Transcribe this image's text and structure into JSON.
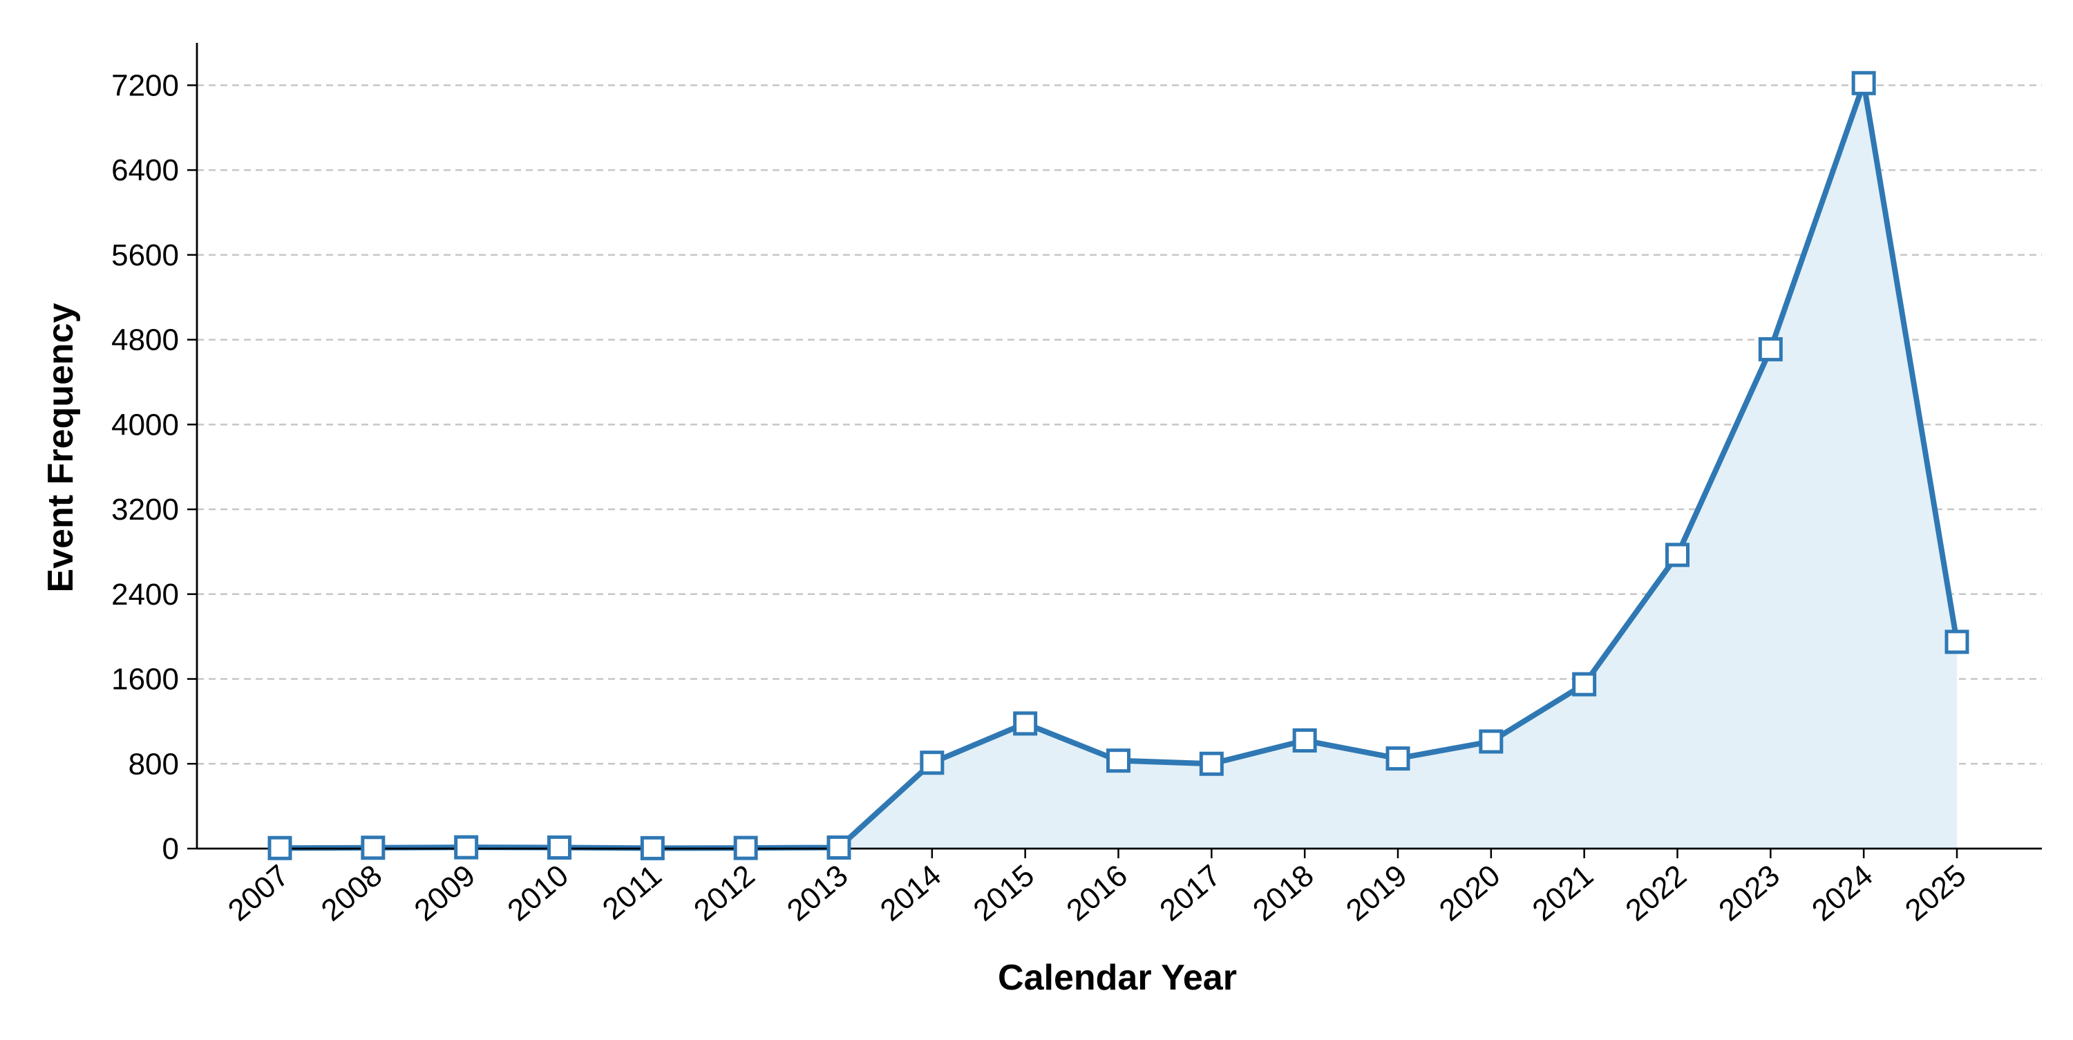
{
  "chart_data": {
    "type": "line",
    "xlabel": "Calendar Year",
    "ylabel": "Event Frequency",
    "x": [
      "2007",
      "2008",
      "2009",
      "2010",
      "2011",
      "2012",
      "2013",
      "2014",
      "2015",
      "2016",
      "2017",
      "2018",
      "2019",
      "2020",
      "2021",
      "2022",
      "2023",
      "2024",
      "2025"
    ],
    "series": [
      {
        "values": [
          5,
          8,
          12,
          10,
          4,
          6,
          10,
          810,
          1180,
          830,
          800,
          1020,
          850,
          1010,
          1550,
          2770,
          4710,
          7220,
          1950
        ],
        "color": "#2f78b4",
        "fill_color": "#e3f0f7"
      }
    ],
    "ylim": [
      0,
      7600
    ],
    "yticks": [
      0,
      800,
      1600,
      2400,
      3200,
      4000,
      4800,
      5600,
      6400,
      7200
    ],
    "grid": "horizontal-dashed",
    "marker": "square-hollow"
  }
}
